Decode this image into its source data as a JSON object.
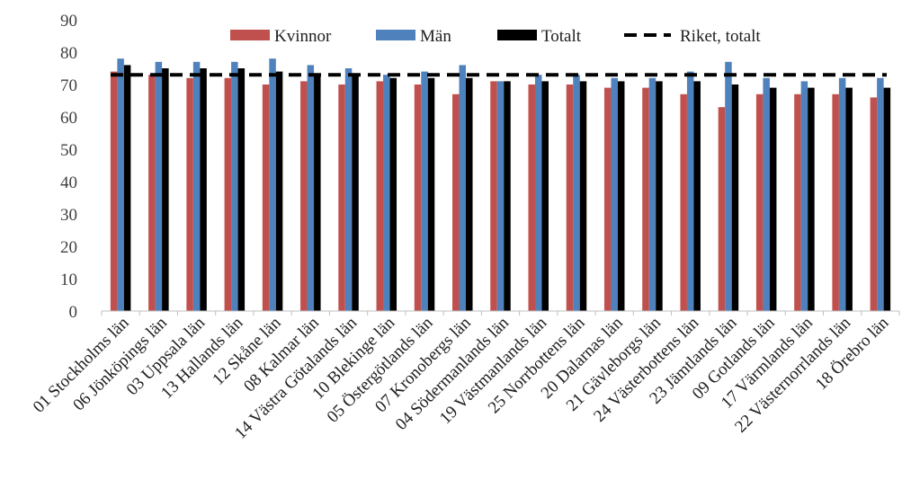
{
  "chart_data": {
    "type": "bar",
    "categories": [
      "01 Stockholms län",
      "06 Jönköpings län",
      "03 Uppsala län",
      "13 Hallands län",
      "12 Skåne län",
      "08 Kalmar län",
      "14 Västra Götalands län",
      "10 Blekinge län",
      "05 Östergötlands län",
      "07 Kronobergs län",
      "04 Södermanlands län",
      "19 Västmanlands län",
      "25 Norrbottens län",
      "20 Dalarnas län",
      "21 Gävleborgs län",
      "24 Västerbottens län",
      "23 Jämtlands län",
      "09 Gotlands län",
      "17 Värmlands län",
      "22 Västernorrlands län",
      "18 Örebro län"
    ],
    "series": [
      {
        "name": "Kvinnor",
        "color": "#c0504d",
        "values": [
          74,
          73,
          72,
          72,
          70,
          71,
          70,
          71,
          70,
          67,
          71,
          70,
          70,
          69,
          69,
          67,
          63,
          67,
          67,
          67,
          66
        ]
      },
      {
        "name": "Män",
        "color": "#4f81bd",
        "values": [
          78,
          77,
          77,
          77,
          78,
          76,
          75,
          73,
          74,
          76,
          71,
          73,
          73,
          72,
          72,
          74,
          77,
          72,
          71,
          72,
          72
        ]
      },
      {
        "name": "Totalt",
        "color": "#000000",
        "values": [
          76,
          75,
          75,
          75,
          74,
          73,
          73,
          72,
          72,
          72,
          71,
          71,
          71,
          71,
          71,
          71,
          70,
          69,
          69,
          69,
          69
        ]
      }
    ],
    "reference_line": {
      "name": "Riket, totalt",
      "value": 73,
      "color": "#000000",
      "style": "dashed"
    },
    "ylim": [
      0,
      90
    ],
    "yticks": [
      0,
      10,
      20,
      30,
      40,
      50,
      60,
      70,
      80,
      90
    ],
    "title": "",
    "xlabel": "",
    "ylabel": "",
    "legend_position": "top",
    "grid": false
  }
}
